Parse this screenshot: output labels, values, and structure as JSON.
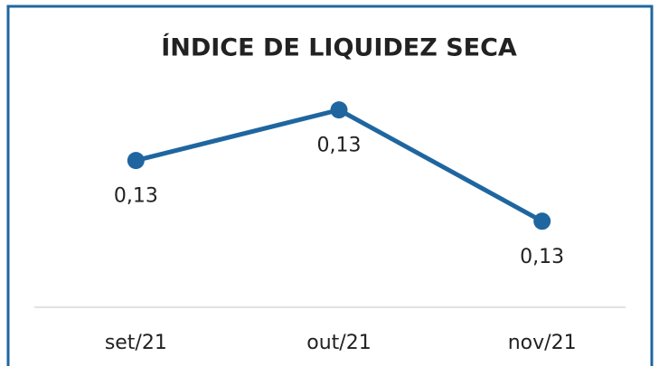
{
  "chart_data": {
    "type": "line",
    "title": "ÍNDICE DE LIQUIDEZ SECA",
    "categories": [
      "set/21",
      "out/21",
      "nov/21"
    ],
    "series": [
      {
        "name": "Índice de liquidez seca",
        "color": "#1f66a0",
        "values": [
          0.1308,
          0.1328,
          0.1284
        ],
        "value_labels": [
          "0,13",
          "0,13",
          "0,13"
        ]
      }
    ],
    "ylim": [
      0.125,
      0.135
    ]
  }
}
